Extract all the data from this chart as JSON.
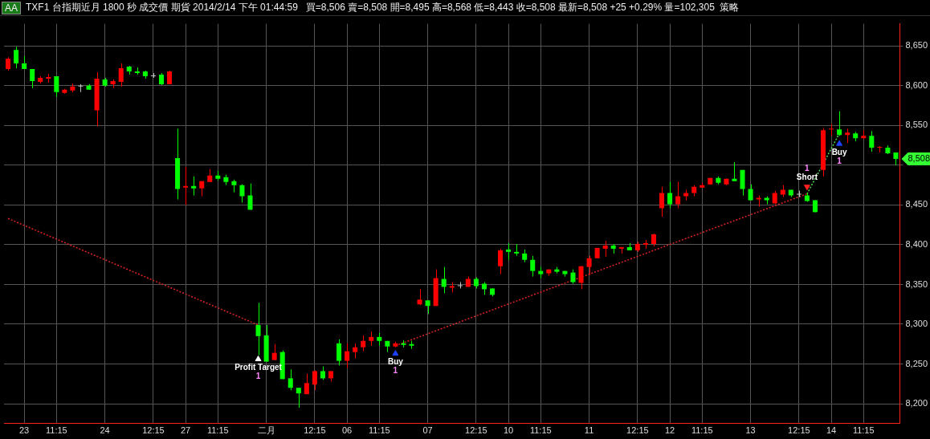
{
  "chart_data": {
    "type": "candlestick",
    "title": "TXF1 台指期近月 1800 秒 成交價 期貨 2014/2/14 下午 01:44:59",
    "subtitle": "買=8,506 賣=8,508 開=8,495 高=8,568 低=8,443 收=8,508 最新=8,508 +25 +0.29% 量=102,305",
    "annotations": [
      "AA",
      "策略",
      "8,508"
    ],
    "categories": [
      null,
      null,
      "23",
      null,
      null,
      null,
      "11:15",
      null,
      null,
      null,
      null,
      null,
      "24",
      null,
      null,
      null,
      null,
      null,
      "12:15",
      null,
      null,
      null,
      "27",
      null,
      null,
      null,
      "11:15",
      null,
      null,
      null,
      null,
      null,
      "二月",
      null,
      null,
      null,
      null,
      null,
      "12:15",
      null,
      null,
      null,
      "06",
      null,
      null,
      null,
      "11:15",
      null,
      null,
      null,
      null,
      null,
      "07",
      null,
      null,
      null,
      null,
      null,
      "12:15",
      null,
      null,
      null,
      "10",
      null,
      null,
      null,
      "11:15",
      null,
      null,
      null,
      null,
      null,
      "11",
      null,
      null,
      null,
      null,
      null,
      "12:15",
      null,
      null,
      null,
      "12",
      null,
      null,
      null,
      "11:15",
      null,
      null,
      null,
      null,
      null,
      "13",
      null,
      null,
      null,
      null,
      null,
      "12:15",
      null,
      null,
      null,
      "14",
      null,
      null,
      null,
      "11:15",
      null,
      null,
      null,
      null
    ],
    "ohlc": [
      [
        8621,
        8636,
        8619,
        8634
      ],
      [
        8645,
        8649,
        8622,
        8628
      ],
      [
        8628,
        8637,
        8621,
        8621
      ],
      [
        8621,
        8621,
        8597,
        8606
      ],
      [
        8605,
        8612,
        8603,
        8610
      ],
      [
        8609,
        8615,
        8604,
        8611
      ],
      [
        8612,
        8612,
        8586,
        8592
      ],
      [
        8591,
        8596,
        8590,
        8595
      ],
      [
        8594,
        8603,
        8592,
        8599
      ],
      [
        8599,
        8602,
        8592,
        8599
      ],
      [
        8600,
        8602,
        8595,
        8595
      ],
      [
        8569,
        8617,
        8549,
        8609
      ],
      [
        8608,
        8610,
        8599,
        8600
      ],
      [
        8602,
        8608,
        8597,
        8606
      ],
      [
        8605,
        8628,
        8599,
        8622
      ],
      [
        8624,
        8625,
        8614,
        8618
      ],
      [
        8618,
        8623,
        8614,
        8616
      ],
      [
        8618,
        8619,
        8609,
        8612
      ],
      [
        8612,
        8616,
        8610,
        8612
      ],
      [
        8614,
        8616,
        8601,
        8602
      ],
      [
        8602,
        8619,
        8602,
        8618
      ],
      [
        8509,
        8546,
        8457,
        8470
      ],
      [
        8472,
        8498,
        8450,
        8474
      ],
      [
        8474,
        8486,
        8462,
        8471
      ],
      [
        8471,
        8480,
        8461,
        8480
      ],
      [
        8479,
        8495,
        8479,
        8487
      ],
      [
        8487,
        8493,
        8481,
        8483
      ],
      [
        8485,
        8488,
        8475,
        8479
      ],
      [
        8480,
        8482,
        8466,
        8475
      ],
      [
        8475,
        8476,
        8453,
        8461
      ],
      [
        8462,
        8477,
        8444,
        8444
      ],
      [
        8299,
        8327,
        8261,
        8285
      ],
      [
        8286,
        8299,
        8253,
        8253
      ],
      [
        8255,
        8275,
        8255,
        8264
      ],
      [
        8265,
        8267,
        8231,
        8231
      ],
      [
        8232,
        8243,
        8217,
        8220
      ],
      [
        8220,
        8220,
        8195,
        8213
      ],
      [
        8212,
        8238,
        8212,
        8226
      ],
      [
        8224,
        8242,
        8217,
        8241
      ],
      [
        8241,
        8247,
        8230,
        8232
      ],
      [
        8232,
        8241,
        8228,
        8241
      ],
      [
        8276,
        8281,
        8248,
        8254
      ],
      [
        8254,
        8276,
        8245,
        8266
      ],
      [
        8265,
        8276,
        8257,
        8271
      ],
      [
        8271,
        8286,
        8266,
        8279
      ],
      [
        8279,
        8291,
        8273,
        8284
      ],
      [
        8284,
        8289,
        8273,
        8279
      ],
      [
        8279,
        8279,
        8265,
        8272
      ],
      [
        8272,
        8278,
        8271,
        8276
      ],
      [
        8276,
        8280,
        8271,
        8274
      ],
      [
        8275,
        8279,
        8269,
        8273
      ],
      [
        8325,
        8344,
        8324,
        8331
      ],
      [
        8330,
        8330,
        8313,
        8323
      ],
      [
        8323,
        8369,
        8323,
        8358
      ],
      [
        8357,
        8372,
        8339,
        8347
      ],
      [
        8346,
        8353,
        8340,
        8348
      ],
      [
        8348,
        8353,
        8345,
        8348
      ],
      [
        8347,
        8360,
        8347,
        8357
      ],
      [
        8357,
        8359,
        8345,
        8348
      ],
      [
        8351,
        8353,
        8337,
        8344
      ],
      [
        8345,
        8345,
        8335,
        8337
      ],
      [
        8373,
        8395,
        8363,
        8393
      ],
      [
        8394,
        8402,
        8381,
        8391
      ],
      [
        8391,
        8401,
        8386,
        8389
      ],
      [
        8389,
        8394,
        8378,
        8381
      ],
      [
        8381,
        8386,
        8360,
        8367
      ],
      [
        8367,
        8372,
        8358,
        8363
      ],
      [
        8364,
        8369,
        8361,
        8369
      ],
      [
        8369,
        8372,
        8364,
        8366
      ],
      [
        8367,
        8367,
        8360,
        8363
      ],
      [
        8365,
        8369,
        8351,
        8353
      ],
      [
        8352,
        8373,
        8344,
        8373
      ],
      [
        8372,
        8386,
        8362,
        8383
      ],
      [
        8383,
        8396,
        8383,
        8396
      ],
      [
        8395,
        8405,
        8385,
        8399
      ],
      [
        8399,
        8401,
        8389,
        8395
      ],
      [
        8395,
        8397,
        8389,
        8397
      ],
      [
        8397,
        8402,
        8393,
        8393
      ],
      [
        8393,
        8404,
        8391,
        8401
      ],
      [
        8400,
        8406,
        8395,
        8402
      ],
      [
        8401,
        8414,
        8398,
        8413
      ],
      [
        8446,
        8473,
        8435,
        8465
      ],
      [
        8465,
        8479,
        8446,
        8451
      ],
      [
        8451,
        8479,
        8446,
        8461
      ],
      [
        8461,
        8469,
        8456,
        8465
      ],
      [
        8465,
        8475,
        8461,
        8473
      ],
      [
        8472,
        8478,
        8472,
        8475
      ],
      [
        8476,
        8484,
        8476,
        8484
      ],
      [
        8484,
        8486,
        8476,
        8478
      ],
      [
        8476,
        8483,
        8475,
        8483
      ],
      [
        8483,
        8504,
        8480,
        8480
      ],
      [
        8494,
        8494,
        8462,
        8470
      ],
      [
        8470,
        8476,
        8456,
        8456
      ],
      [
        8457,
        8462,
        8448,
        8459
      ],
      [
        8459,
        8461,
        8451,
        8456
      ],
      [
        8452,
        8468,
        8451,
        8465
      ],
      [
        8463,
        8475,
        8460,
        8469
      ],
      [
        8469,
        8469,
        8460,
        8462
      ],
      [
        8463,
        8468,
        8460,
        8463
      ],
      [
        8462,
        8465,
        8454,
        8455
      ],
      [
        8456,
        8456,
        8441,
        8441
      ],
      [
        8494,
        8547,
        8486,
        8544
      ],
      [
        8545,
        8552,
        8537,
        8546
      ],
      [
        8545,
        8568,
        8537,
        8538
      ],
      [
        8538,
        8546,
        8528,
        8541
      ],
      [
        8540,
        8542,
        8530,
        8534
      ],
      [
        8534,
        8544,
        8533,
        8537
      ],
      [
        8537,
        8543,
        8517,
        8522
      ],
      [
        8522,
        8524,
        8516,
        8523
      ],
      [
        8522,
        8525,
        8514,
        8515
      ],
      [
        8516,
        8516,
        8500,
        8508
      ]
    ],
    "colors": [
      "#ff0000",
      "#00ff00",
      "#00ff00",
      "#00ff00",
      "#ff0000",
      "#ff0000",
      "#00ff00",
      "#ff0000",
      "#ff0000",
      "#c0c0c0",
      "#00ff00",
      "#ff0000",
      "#00ff00",
      "#ff0000",
      "#ff0000",
      "#00ff00",
      "#00ff00",
      "#00ff00",
      "#c0c0c0",
      "#00ff00",
      "#ff0000",
      "#00ff00",
      "#ff0000",
      "#00ff00",
      "#ff0000",
      "#ff0000",
      "#00ff00",
      "#00ff00",
      "#00ff00",
      "#00ff00",
      "#00ff00",
      "#00ff00",
      "#00ff00",
      "#ff0000",
      "#00ff00",
      "#00ff00",
      "#00ff00",
      "#ff0000",
      "#ff0000",
      "#00ff00",
      "#ff0000",
      "#00ff00",
      "#ff0000",
      "#ff0000",
      "#ff0000",
      "#ff0000",
      "#00ff00",
      "#00ff00",
      "#ff0000",
      "#00ff00",
      "#00ff00",
      "#ff0000",
      "#00ff00",
      "#ff0000",
      "#00ff00",
      "#ff0000",
      "#c0c0c0",
      "#ff0000",
      "#00ff00",
      "#00ff00",
      "#00ff00",
      "#ff0000",
      "#00ff00",
      "#00ff00",
      "#00ff00",
      "#00ff00",
      "#00ff00",
      "#ff0000",
      "#00ff00",
      "#00ff00",
      "#00ff00",
      "#ff0000",
      "#ff0000",
      "#ff0000",
      "#ff0000",
      "#00ff00",
      "#ff0000",
      "#00ff00",
      "#ff0000",
      "#ff0000",
      "#ff0000",
      "#ff0000",
      "#00ff00",
      "#ff0000",
      "#ff0000",
      "#ff0000",
      "#ff0000",
      "#ff0000",
      "#00ff00",
      "#ff0000",
      "#00ff00",
      "#00ff00",
      "#00ff00",
      "#ff0000",
      "#00ff00",
      "#ff0000",
      "#ff0000",
      "#00ff00",
      "#c0c0c0",
      "#00ff00",
      "#00ff00",
      "#ff0000",
      "#ff0000",
      "#00ff00",
      "#ff0000",
      "#00ff00",
      "#ff0000",
      "#00ff00",
      "#ff0000",
      "#00ff00",
      "#00ff00"
    ],
    "series": [
      {
        "type": "line",
        "color": "#dd2222",
        "line_style": "dotted",
        "values": [
          8433,
          null,
          null,
          null,
          null,
          null,
          null,
          null,
          null,
          null,
          null,
          null,
          null,
          null,
          null,
          null,
          null,
          null,
          null,
          null,
          null,
          null,
          null,
          null,
          null,
          null,
          null,
          null,
          null,
          null,
          null,
          8299,
          null,
          null,
          null,
          null,
          null,
          null,
          null,
          null,
          null,
          null,
          null,
          null,
          null,
          null,
          null,
          null,
          null,
          null,
          null,
          null,
          null,
          null,
          null,
          null,
          null,
          null,
          null,
          null,
          null,
          null,
          null,
          null,
          null,
          null,
          null,
          null,
          null,
          null,
          null,
          null,
          null,
          null,
          null,
          null,
          null,
          null,
          null,
          null,
          null,
          null,
          null,
          null,
          null,
          null,
          null,
          null,
          null,
          null,
          null,
          null,
          null,
          null,
          null,
          null,
          null,
          null,
          null,
          null,
          null,
          null,
          null,
          null,
          null,
          null,
          null,
          null,
          null,
          null,
          null
        ]
      },
      {
        "type": "line",
        "color": "#dd2222",
        "line_style": "dotted",
        "values": [
          null,
          null,
          null,
          null,
          null,
          null,
          null,
          null,
          null,
          null,
          null,
          null,
          null,
          null,
          null,
          null,
          null,
          null,
          null,
          null,
          null,
          null,
          null,
          null,
          null,
          null,
          null,
          null,
          null,
          null,
          null,
          null,
          null,
          null,
          null,
          null,
          null,
          null,
          null,
          null,
          null,
          null,
          null,
          null,
          null,
          null,
          null,
          null,
          8273,
          null,
          null,
          null,
          null,
          null,
          null,
          null,
          null,
          null,
          null,
          null,
          null,
          null,
          null,
          null,
          null,
          null,
          null,
          null,
          null,
          null,
          null,
          null,
          null,
          null,
          null,
          null,
          null,
          null,
          null,
          null,
          null,
          null,
          null,
          null,
          null,
          null,
          null,
          null,
          null,
          null,
          null,
          null,
          null,
          null,
          null,
          null,
          null,
          null,
          null,
          8464,
          null,
          null,
          null,
          null,
          null,
          null,
          null,
          null,
          null,
          null,
          null
        ]
      },
      {
        "type": "line",
        "color": "#55dd55",
        "line_style": "dotted",
        "values": [
          null,
          null,
          null,
          null,
          null,
          null,
          null,
          null,
          null,
          null,
          null,
          null,
          null,
          null,
          null,
          null,
          null,
          null,
          null,
          null,
          null,
          null,
          null,
          null,
          null,
          null,
          null,
          null,
          null,
          null,
          null,
          null,
          null,
          null,
          null,
          null,
          null,
          null,
          null,
          null,
          null,
          null,
          null,
          null,
          null,
          null,
          null,
          null,
          null,
          null,
          null,
          null,
          null,
          null,
          null,
          null,
          null,
          null,
          null,
          null,
          null,
          null,
          null,
          null,
          null,
          null,
          null,
          null,
          null,
          null,
          null,
          null,
          null,
          null,
          null,
          null,
          null,
          null,
          null,
          null,
          null,
          null,
          null,
          null,
          null,
          null,
          null,
          null,
          null,
          null,
          null,
          null,
          null,
          null,
          null,
          null,
          null,
          null,
          null,
          8464,
          null,
          null,
          null,
          8540,
          null,
          null,
          null,
          null,
          null,
          null,
          null
        ]
      },
      {
        "type": "scatter",
        "name": "Profit Target\n1",
        "color": "#ffffff",
        "marker": "triangle",
        "values": [
          null,
          null,
          null,
          null,
          null,
          null,
          null,
          null,
          null,
          null,
          null,
          null,
          null,
          null,
          null,
          null,
          null,
          null,
          null,
          null,
          null,
          null,
          null,
          null,
          null,
          null,
          null,
          null,
          null,
          null,
          null,
          8256,
          null,
          null,
          null,
          null,
          null,
          null,
          null,
          null,
          null,
          null,
          null,
          null,
          null,
          null,
          null,
          null,
          null,
          null,
          null,
          null,
          null,
          null,
          null,
          null,
          null,
          null,
          null,
          null,
          null,
          null,
          null,
          null,
          null,
          null,
          null,
          null,
          null,
          null,
          null,
          null,
          null,
          null,
          null,
          null,
          null,
          null,
          null,
          null,
          null,
          null,
          null,
          null,
          null,
          null,
          null,
          null,
          null,
          null,
          null,
          null,
          null,
          null,
          null,
          null,
          null,
          null,
          null,
          null,
          null,
          null,
          null,
          null,
          null,
          null,
          null,
          null,
          null,
          null,
          null
        ]
      },
      {
        "type": "scatter",
        "name": "Buy\n1",
        "color": "#2040ff",
        "marker": "triangle",
        "values": [
          null,
          null,
          null,
          null,
          null,
          null,
          null,
          null,
          null,
          null,
          null,
          null,
          null,
          null,
          null,
          null,
          null,
          null,
          null,
          null,
          null,
          null,
          null,
          null,
          null,
          null,
          null,
          null,
          null,
          null,
          null,
          null,
          null,
          null,
          null,
          null,
          null,
          null,
          null,
          null,
          null,
          null,
          null,
          null,
          null,
          null,
          null,
          null,
          8263,
          null,
          null,
          null,
          null,
          null,
          null,
          null,
          null,
          null,
          null,
          null,
          null,
          null,
          null,
          null,
          null,
          null,
          null,
          null,
          null,
          null,
          null,
          null,
          null,
          null,
          null,
          null,
          null,
          null,
          null,
          null,
          null,
          null,
          null,
          null,
          null,
          null,
          null,
          null,
          null,
          null,
          null,
          null,
          null,
          null,
          null,
          null,
          null,
          null,
          null,
          null,
          null,
          null,
          null,
          8527,
          null,
          null,
          null,
          null,
          null,
          null,
          null
        ]
      },
      {
        "type": "scatter",
        "name": "Short\n1",
        "color": "#ff2020",
        "marker": "triangle",
        "values": [
          null,
          null,
          null,
          null,
          null,
          null,
          null,
          null,
          null,
          null,
          null,
          null,
          null,
          null,
          null,
          null,
          null,
          null,
          null,
          null,
          null,
          null,
          null,
          null,
          null,
          null,
          null,
          null,
          null,
          null,
          null,
          null,
          null,
          null,
          null,
          null,
          null,
          null,
          null,
          null,
          null,
          null,
          null,
          null,
          null,
          null,
          null,
          null,
          null,
          null,
          null,
          null,
          null,
          null,
          null,
          null,
          null,
          null,
          null,
          null,
          null,
          null,
          null,
          null,
          null,
          null,
          null,
          null,
          null,
          null,
          null,
          null,
          null,
          null,
          null,
          null,
          null,
          null,
          null,
          null,
          null,
          null,
          null,
          null,
          null,
          null,
          null,
          null,
          null,
          null,
          null,
          null,
          null,
          null,
          null,
          null,
          null,
          null,
          null,
          8473,
          null,
          null,
          null,
          null,
          null,
          null,
          null,
          null,
          null,
          null,
          null
        ]
      }
    ],
    "ylim": [
      8175,
      8678
    ],
    "yticks": [
      {
        "value": 8200,
        "label": "8,200"
      },
      {
        "value": 8250,
        "label": "8,250"
      },
      {
        "value": 8300,
        "label": "8,300"
      },
      {
        "value": 8350,
        "label": "8,350"
      },
      {
        "value": 8400,
        "label": "8,400"
      },
      {
        "value": 8450,
        "label": "8,450"
      },
      {
        "value": 8500,
        "label": null
      },
      {
        "value": 8550,
        "label": "8,550"
      },
      {
        "value": 8600,
        "label": "8,600"
      },
      {
        "value": 8650,
        "label": "8,650"
      }
    ],
    "grid": true
  }
}
